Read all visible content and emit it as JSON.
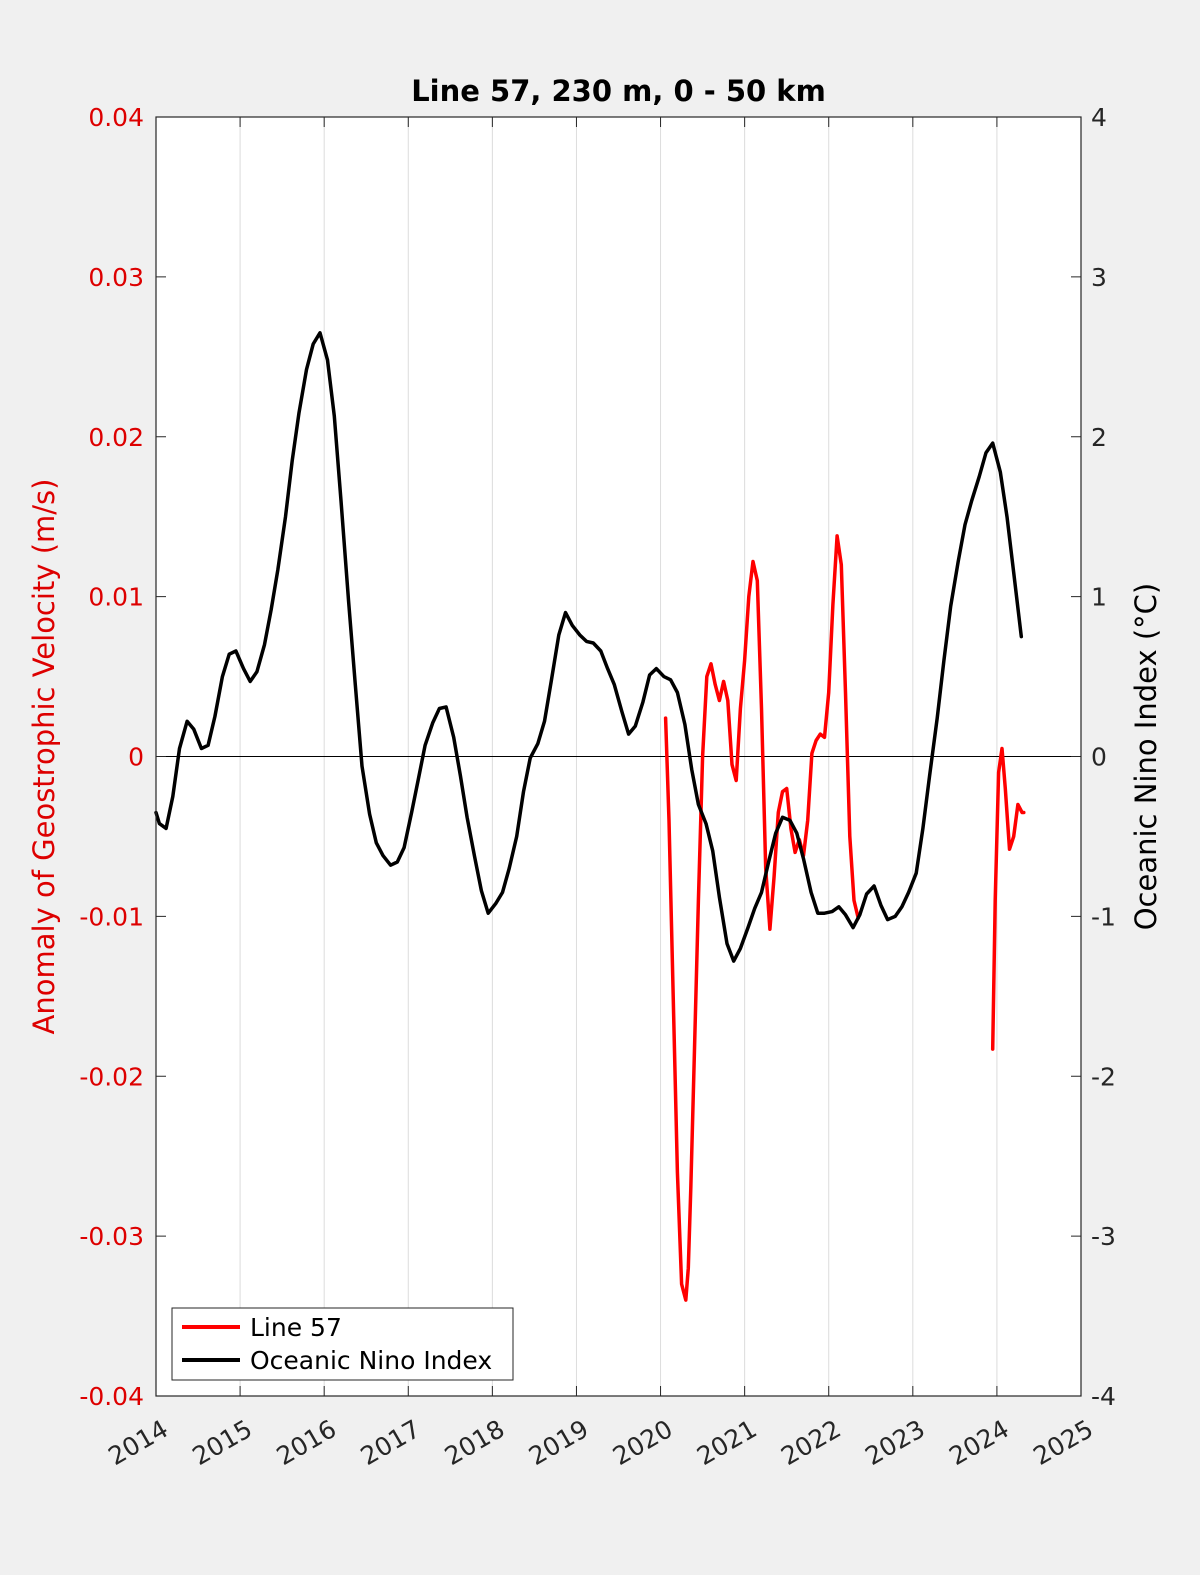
{
  "chart_data": {
    "type": "line",
    "title": "Line 57, 230 m, 0 - 50 km",
    "ylabel_left": "Anomaly of Geostrophic Velocity (m/s)",
    "ylabel_right": "Oceanic Nino Index (°C)",
    "xlabel": "",
    "xlim": [
      2014,
      2025
    ],
    "ylim_left": [
      -0.04,
      0.04
    ],
    "ylim_right": [
      -4,
      4
    ],
    "x_ticks": [
      "2014",
      "2015",
      "2016",
      "2017",
      "2018",
      "2019",
      "2020",
      "2021",
      "2022",
      "2023",
      "2024",
      "2025"
    ],
    "y_left_ticks": [
      "-0.04",
      "-0.03",
      "-0.02",
      "-0.01",
      "0",
      "0.01",
      "0.02",
      "0.03",
      "0.04"
    ],
    "y_right_ticks": [
      "-4",
      "-3",
      "-2",
      "-1",
      "0",
      "1",
      "2",
      "3",
      "4"
    ],
    "grid": "vertical",
    "zero_line": true,
    "colors": {
      "line57": "#ff0000",
      "oni": "#000000",
      "left_axis": "#dd0000",
      "plot_bg": "#ffffff",
      "figure_bg": "#f0f0f0"
    },
    "legend": {
      "position": "bottom-left",
      "entries": [
        "Line 57",
        "Oceanic Nino Index"
      ]
    },
    "series": [
      {
        "name": "Line 57",
        "axis": "left",
        "x": [
          2020.06,
          2020.1,
          2020.15,
          2020.2,
          2020.25,
          2020.3,
          2020.33,
          2020.36,
          2020.4,
          2020.45,
          2020.5,
          2020.55,
          2020.6,
          2020.65,
          2020.7,
          2020.75,
          2020.8,
          2020.85,
          2020.9,
          2020.95,
          2021.0,
          2021.05,
          2021.1,
          2021.15,
          2021.2,
          2021.25,
          2021.3,
          2021.35,
          2021.4,
          2021.45,
          2021.5,
          2021.55,
          2021.6,
          2021.65,
          2021.7,
          2021.75,
          2021.8,
          2021.85,
          2021.9,
          2021.95,
          2022.0,
          2022.05,
          2022.1,
          2022.15,
          2022.2,
          2022.25,
          2022.3,
          2022.35,
          2022.4,
          2022.45,
          2022.5,
          2022.55,
          2022.6,
          2022.65,
          2022.7,
          2022.75,
          2022.8,
          2022.85,
          2022.9,
          2022.95,
          2023.0,
          2023.02,
          null,
          2023.95,
          2023.98,
          2024.02,
          2024.06,
          2024.1,
          2024.15,
          2024.2,
          2024.25,
          2024.3,
          2024.32
        ],
        "y": [
          0.0024,
          -0.004,
          -0.015,
          -0.026,
          -0.033,
          -0.034,
          -0.032,
          -0.027,
          -0.019,
          -0.009,
          0.0,
          0.005,
          0.0058,
          0.0045,
          0.0035,
          0.0047,
          0.0035,
          -0.0005,
          -0.0015,
          0.003,
          0.006,
          0.01,
          0.0122,
          0.011,
          0.003,
          -0.007,
          -0.0108,
          -0.0075,
          -0.0035,
          -0.0022,
          -0.002,
          -0.0045,
          -0.006,
          -0.0052,
          -0.0062,
          -0.004,
          0.0002,
          0.001,
          0.0014,
          0.0012,
          0.004,
          0.0095,
          0.0138,
          0.012,
          0.004,
          -0.005,
          -0.009,
          -0.0101,
          null,
          null,
          null,
          null,
          null,
          null,
          null,
          null,
          null,
          null,
          null,
          null,
          null,
          null,
          null,
          -0.0183,
          -0.009,
          -0.001,
          0.0005,
          -0.002,
          -0.0058,
          -0.005,
          -0.003,
          -0.0035,
          -0.0035
        ],
        "note_x_y_pairs": "values per x index; null separates segments"
      },
      {
        "name": "Oceanic Nino Index",
        "axis": "right",
        "x": [
          2014.0,
          2014.04,
          2014.12,
          2014.2,
          2014.28,
          2014.37,
          2014.45,
          2014.54,
          2014.62,
          2014.7,
          2014.79,
          2014.87,
          2014.95,
          2015.04,
          2015.12,
          2015.2,
          2015.29,
          2015.37,
          2015.45,
          2015.54,
          2015.62,
          2015.7,
          2015.79,
          2015.87,
          2015.95,
          2016.04,
          2016.12,
          2016.2,
          2016.29,
          2016.37,
          2016.45,
          2016.54,
          2016.62,
          2016.7,
          2016.79,
          2016.87,
          2016.95,
          2017.04,
          2017.12,
          2017.2,
          2017.29,
          2017.37,
          2017.45,
          2017.54,
          2017.62,
          2017.7,
          2017.79,
          2017.87,
          2017.95,
          2018.04,
          2018.12,
          2018.2,
          2018.29,
          2018.37,
          2018.45,
          2018.54,
          2018.62,
          2018.7,
          2018.79,
          2018.87,
          2018.95,
          2019.04,
          2019.12,
          2019.2,
          2019.29,
          2019.37,
          2019.45,
          2019.54,
          2019.62,
          2019.7,
          2019.79,
          2019.87,
          2019.95,
          2020.04,
          2020.12,
          2020.2,
          2020.29,
          2020.37,
          2020.45,
          2020.54,
          2020.62,
          2020.7,
          2020.79,
          2020.87,
          2020.95,
          2021.04,
          2021.12,
          2021.2,
          2021.29,
          2021.37,
          2021.45,
          2021.54,
          2021.62,
          2021.7,
          2021.79,
          2021.87,
          2021.95,
          2022.04,
          2022.12,
          2022.2,
          2022.29,
          2022.37,
          2022.45,
          2022.54,
          2022.62,
          2022.7,
          2022.79,
          2022.87,
          2022.95,
          2023.04,
          2023.12,
          2023.2,
          2023.29,
          2023.37,
          2023.45,
          2023.54,
          2023.62,
          2023.7,
          2023.79,
          2023.87,
          2023.95,
          2024.04,
          2024.12,
          2024.2,
          2024.29
        ],
        "y": [
          -0.35,
          -0.42,
          -0.45,
          -0.25,
          0.05,
          0.22,
          0.17,
          0.05,
          0.07,
          0.25,
          0.5,
          0.64,
          0.66,
          0.55,
          0.47,
          0.53,
          0.7,
          0.92,
          1.17,
          1.5,
          1.85,
          2.15,
          2.42,
          2.58,
          2.65,
          2.48,
          2.13,
          1.6,
          0.97,
          0.45,
          -0.06,
          -0.36,
          -0.54,
          -0.62,
          -0.68,
          -0.66,
          -0.57,
          -0.35,
          -0.14,
          0.07,
          0.21,
          0.3,
          0.31,
          0.12,
          -0.12,
          -0.38,
          -0.63,
          -0.84,
          -0.98,
          -0.92,
          -0.85,
          -0.7,
          -0.5,
          -0.22,
          -0.01,
          0.08,
          0.22,
          0.47,
          0.76,
          0.9,
          0.82,
          0.76,
          0.72,
          0.71,
          0.66,
          0.55,
          0.45,
          0.28,
          0.14,
          0.19,
          0.34,
          0.51,
          0.55,
          0.5,
          0.48,
          0.4,
          0.2,
          -0.08,
          -0.3,
          -0.42,
          -0.59,
          -0.88,
          -1.17,
          -1.28,
          -1.2,
          -1.07,
          -0.95,
          -0.85,
          -0.65,
          -0.48,
          -0.38,
          -0.4,
          -0.48,
          -0.64,
          -0.85,
          -0.98,
          -0.98,
          -0.97,
          -0.94,
          -0.99,
          -1.07,
          -0.99,
          -0.86,
          -0.81,
          -0.93,
          -1.02,
          -1.0,
          -0.94,
          -0.85,
          -0.73,
          -0.45,
          -0.12,
          0.24,
          0.6,
          0.94,
          1.22,
          1.45,
          1.6,
          1.75,
          1.9,
          1.96,
          1.78,
          1.5,
          1.15,
          0.75
        ]
      }
    ]
  }
}
